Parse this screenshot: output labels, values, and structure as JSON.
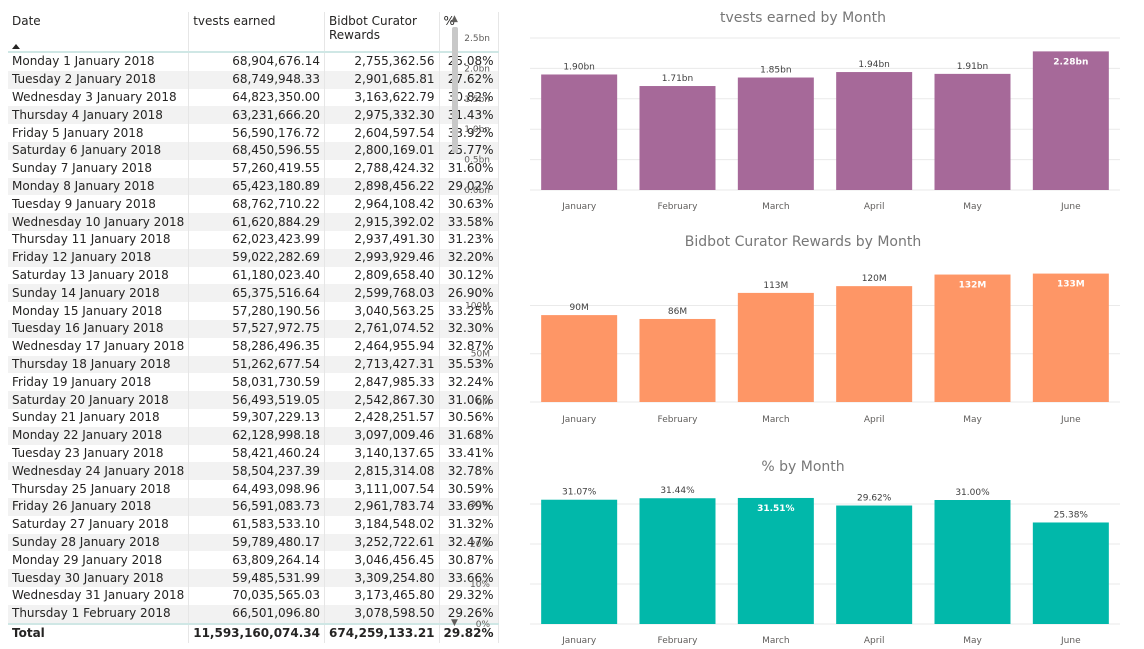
{
  "table": {
    "headers": {
      "date": "Date",
      "tvests": "tvests earned",
      "bidbot": "Bidbot Curator Rewards",
      "pct": "%"
    },
    "rows": [
      [
        "Monday 1 January 2018",
        "68,904,676.14",
        "2,755,362.56",
        "25.08%"
      ],
      [
        "Tuesday 2 January 2018",
        "68,749,948.33",
        "2,901,685.81",
        "27.62%"
      ],
      [
        "Wednesday 3 January 2018",
        "64,823,350.00",
        "3,163,622.79",
        "30.82%"
      ],
      [
        "Thursday 4 January 2018",
        "63,231,666.20",
        "2,975,332.30",
        "31.43%"
      ],
      [
        "Friday 5 January 2018",
        "56,590,176.72",
        "2,604,597.54",
        "33.92%"
      ],
      [
        "Saturday 6 January 2018",
        "68,450,596.55",
        "2,800,169.01",
        "25.77%"
      ],
      [
        "Sunday 7 January 2018",
        "57,260,419.55",
        "2,788,424.32",
        "31.60%"
      ],
      [
        "Monday 8 January 2018",
        "65,423,180.89",
        "2,898,456.22",
        "29.02%"
      ],
      [
        "Tuesday 9 January 2018",
        "68,762,710.22",
        "2,964,108.42",
        "30.63%"
      ],
      [
        "Wednesday 10 January 2018",
        "61,620,884.29",
        "2,915,392.02",
        "33.58%"
      ],
      [
        "Thursday 11 January 2018",
        "62,023,423.99",
        "2,937,491.30",
        "31.23%"
      ],
      [
        "Friday 12 January 2018",
        "59,022,282.69",
        "2,993,929.46",
        "32.20%"
      ],
      [
        "Saturday 13 January 2018",
        "61,180,023.40",
        "2,809,658.40",
        "30.12%"
      ],
      [
        "Sunday 14 January 2018",
        "65,375,516.64",
        "2,599,768.03",
        "26.90%"
      ],
      [
        "Monday 15 January 2018",
        "57,280,190.56",
        "3,040,563.25",
        "33.25%"
      ],
      [
        "Tuesday 16 January 2018",
        "57,527,972.75",
        "2,761,074.52",
        "32.30%"
      ],
      [
        "Wednesday 17 January 2018",
        "58,286,496.35",
        "2,464,955.94",
        "32.87%"
      ],
      [
        "Thursday 18 January 2018",
        "51,262,677.54",
        "2,713,427.31",
        "35.53%"
      ],
      [
        "Friday 19 January 2018",
        "58,031,730.59",
        "2,847,985.33",
        "32.24%"
      ],
      [
        "Saturday 20 January 2018",
        "56,493,519.05",
        "2,542,867.30",
        "31.06%"
      ],
      [
        "Sunday 21 January 2018",
        "59,307,229.13",
        "2,428,251.57",
        "30.56%"
      ],
      [
        "Monday 22 January 2018",
        "62,128,998.18",
        "3,097,009.46",
        "31.68%"
      ],
      [
        "Tuesday 23 January 2018",
        "58,421,460.24",
        "3,140,137.65",
        "33.41%"
      ],
      [
        "Wednesday 24 January 2018",
        "58,504,237.39",
        "2,815,314.08",
        "32.78%"
      ],
      [
        "Thursday 25 January 2018",
        "64,493,098.96",
        "3,111,007.54",
        "30.59%"
      ],
      [
        "Friday 26 January 2018",
        "56,591,083.73",
        "2,961,783.74",
        "33.69%"
      ],
      [
        "Saturday 27 January 2018",
        "61,583,533.10",
        "3,184,548.02",
        "31.32%"
      ],
      [
        "Sunday 28 January 2018",
        "59,789,480.17",
        "3,252,722.61",
        "32.47%"
      ],
      [
        "Monday 29 January 2018",
        "63,809,264.14",
        "3,046,456.45",
        "30.87%"
      ],
      [
        "Tuesday 30 January 2018",
        "59,485,531.99",
        "3,309,254.80",
        "33.66%"
      ],
      [
        "Wednesday 31 January 2018",
        "70,035,565.03",
        "3,173,465.80",
        "29.32%"
      ],
      [
        "Thursday 1 February 2018",
        "66,501,096.80",
        "3,078,598.50",
        "29.26%"
      ]
    ],
    "total": {
      "label": "Total",
      "tvests": "11,593,160,074.34",
      "bidbot": "674,259,133.21",
      "pct": "29.82%"
    }
  },
  "chart_data": [
    {
      "type": "bar",
      "title": "tvests earned by Month",
      "categories": [
        "January",
        "February",
        "March",
        "April",
        "May",
        "June"
      ],
      "values": [
        1.9,
        1.71,
        1.85,
        1.94,
        1.91,
        2.28
      ],
      "unit": "bn",
      "data_labels": [
        "1.90bn",
        "1.71bn",
        "1.85bn",
        "1.94bn",
        "1.91bn",
        "2.28bn"
      ],
      "ylim": [
        0,
        2.5
      ],
      "yticks": [
        "0.0bn",
        "0.5bn",
        "1.0bn",
        "1.5bn",
        "2.0bn",
        "2.5bn"
      ],
      "color": "#a66999",
      "xlabel": "",
      "ylabel": ""
    },
    {
      "type": "bar",
      "title": "Bidbot Curator Rewards by Month",
      "categories": [
        "January",
        "February",
        "March",
        "April",
        "May",
        "June"
      ],
      "values": [
        90,
        86,
        113,
        120,
        132,
        133
      ],
      "unit": "M",
      "data_labels": [
        "90M",
        "86M",
        "113M",
        "120M",
        "132M",
        "133M"
      ],
      "ylim": [
        0,
        145
      ],
      "yticks": [
        "0M",
        "50M",
        "100M"
      ],
      "color": "#fe9666",
      "xlabel": "",
      "ylabel": ""
    },
    {
      "type": "bar",
      "title": "% by Month",
      "categories": [
        "January",
        "February",
        "March",
        "April",
        "May",
        "June"
      ],
      "values": [
        31.07,
        31.44,
        31.51,
        29.62,
        31.0,
        25.38
      ],
      "unit": "%",
      "data_labels": [
        "31.07%",
        "31.44%",
        "31.51%",
        "29.62%",
        "31.00%",
        "25.38%"
      ],
      "ylim": [
        0,
        36
      ],
      "yticks": [
        "0%",
        "10%",
        "20%",
        "30%"
      ],
      "color": "#01b8aa",
      "xlabel": "",
      "ylabel": ""
    }
  ]
}
